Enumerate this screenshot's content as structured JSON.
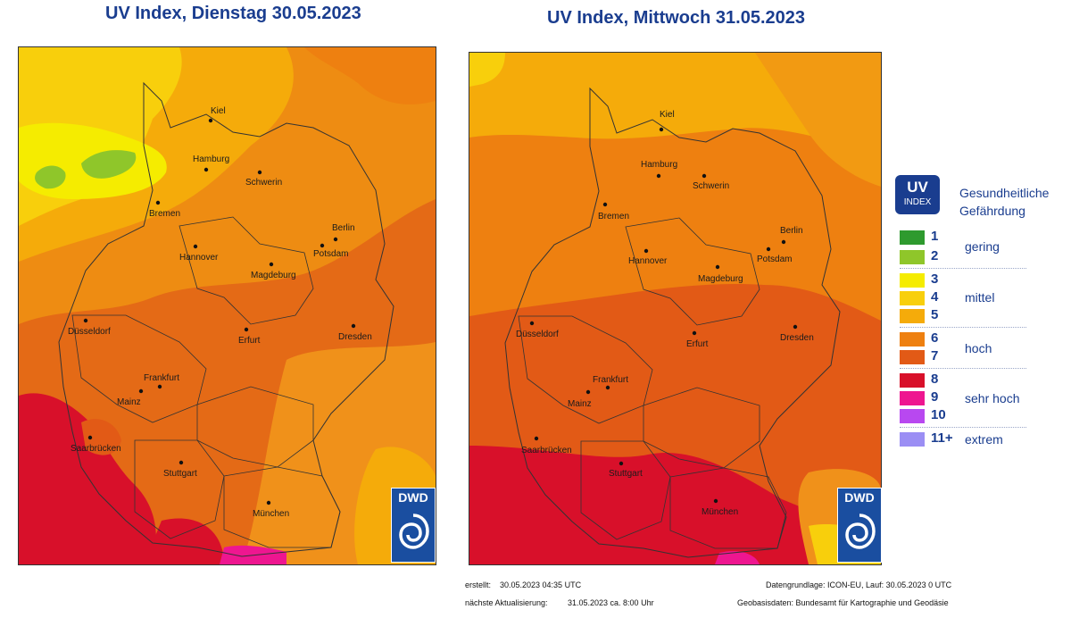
{
  "titles": {
    "left": "UV Index, Dienstag 30.05.2023",
    "right": "UV Index, Mittwoch 31.05.2023"
  },
  "cities": [
    {
      "name": "Kiel"
    },
    {
      "name": "Hamburg"
    },
    {
      "name": "Schwerin"
    },
    {
      "name": "Bremen"
    },
    {
      "name": "Berlin"
    },
    {
      "name": "Potsdam"
    },
    {
      "name": "Hannover"
    },
    {
      "name": "Magdeburg"
    },
    {
      "name": "Düsseldorf"
    },
    {
      "name": "Erfurt"
    },
    {
      "name": "Dresden"
    },
    {
      "name": "Frankfurt"
    },
    {
      "name": "Mainz"
    },
    {
      "name": "Saarbrücken"
    },
    {
      "name": "Stuttgart"
    },
    {
      "name": "München"
    }
  ],
  "logo": {
    "text": "DWD"
  },
  "legend": {
    "badge_main": "UV",
    "badge_sub": "INDEX",
    "heading": "Gesundheitliche Gefährdung",
    "levels": [
      {
        "value": "1",
        "color": "#2e9a2e"
      },
      {
        "value": "2",
        "color": "#8fc62a"
      },
      {
        "value": "3",
        "color": "#f5ec00"
      },
      {
        "value": "4",
        "color": "#f8cf0c"
      },
      {
        "value": "5",
        "color": "#f5ab0a"
      },
      {
        "value": "6",
        "color": "#ee8010"
      },
      {
        "value": "7",
        "color": "#e25a16"
      },
      {
        "value": "8",
        "color": "#d8102a"
      },
      {
        "value": "9",
        "color": "#ee1690"
      },
      {
        "value": "10",
        "color": "#b848f0"
      },
      {
        "value": "11+",
        "color": "#9b8ef4"
      }
    ],
    "categories": [
      "gering",
      "mittel",
      "hoch",
      "sehr hoch",
      "extrem"
    ]
  },
  "footer": {
    "created_label": "erstellt:",
    "created_value": "30.05.2023 04:35 UTC",
    "next_label": "nächste Aktualisierung:",
    "next_value": "31.05.2023 ca. 8:00 Uhr",
    "data_basis": "Datengrundlage: ICON-EU, Lauf: 30.05.2023 0 UTC",
    "geo_basis": "Geobasisdaten: Bundesamt für Kartographie und Geodäsie"
  }
}
